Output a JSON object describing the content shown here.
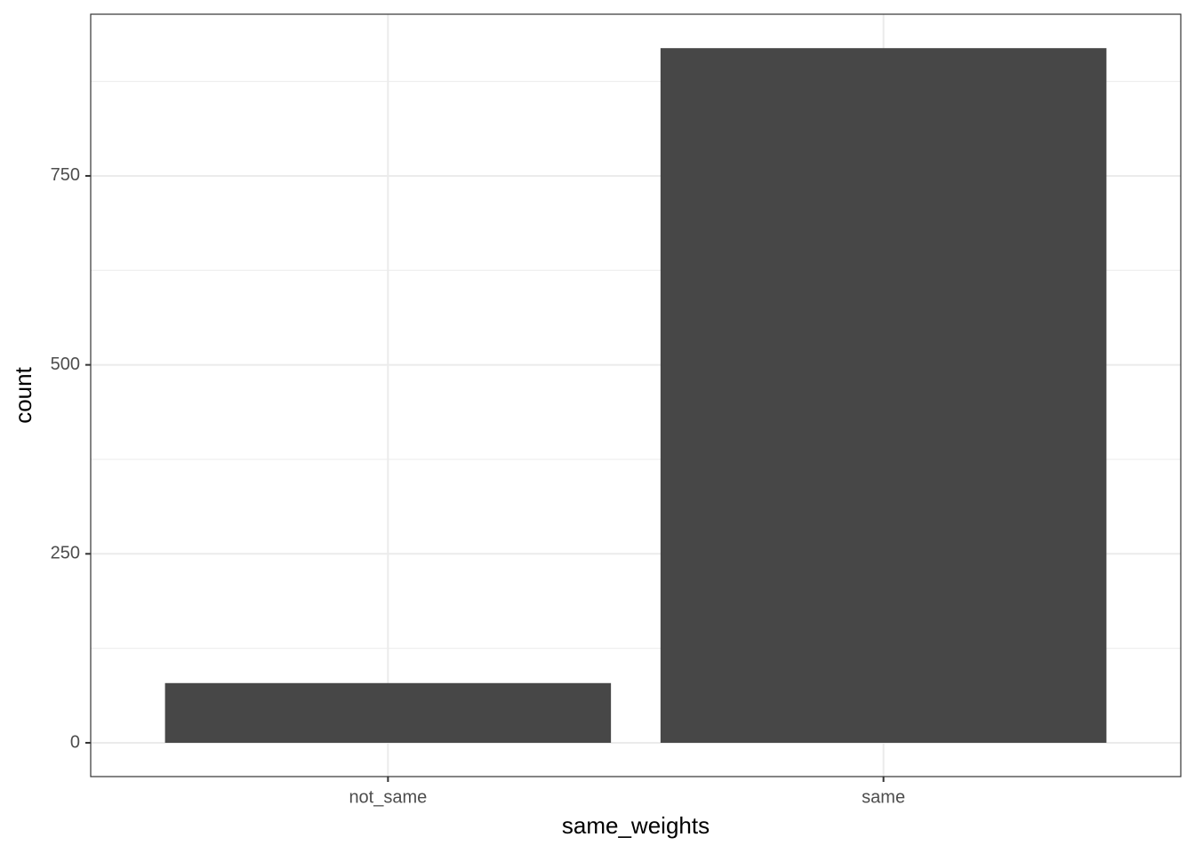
{
  "chart_data": {
    "type": "bar",
    "x_label": "same_weights",
    "y_label": "count",
    "categories": [
      "not_same",
      "same"
    ],
    "values": [
      79,
      919
    ],
    "color": "#474747",
    "ylim": [
      -44.7,
      963.9
    ],
    "yticks": [
      0,
      250,
      500,
      750
    ],
    "minor_yticks": [
      125,
      375,
      625,
      875
    ],
    "grid": true
  }
}
